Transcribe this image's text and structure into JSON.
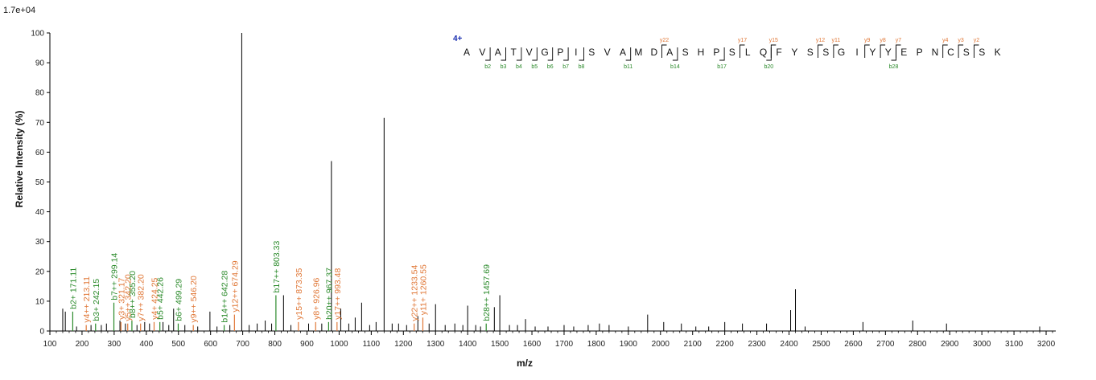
{
  "chart_data": {
    "type": "bar",
    "scale_label": "1.7e+04",
    "xlabel": "m/z",
    "ylabel": "Relative   Intensity (%)",
    "xlim": [
      100,
      3230
    ],
    "ylim": [
      0,
      100
    ],
    "xticks": [
      100,
      200,
      300,
      400,
      500,
      600,
      700,
      800,
      900,
      1000,
      1100,
      1200,
      1300,
      1400,
      1500,
      1600,
      1700,
      1800,
      1900,
      2000,
      2100,
      2200,
      2300,
      2400,
      2500,
      2600,
      2700,
      2800,
      2900,
      3000,
      3100,
      3200
    ],
    "yticks": [
      0,
      10,
      20,
      30,
      40,
      50,
      60,
      70,
      80,
      90,
      100
    ],
    "colors": {
      "b_ion": "#2a8a2a",
      "y_ion": "#e07838",
      "unlabeled": "#000000",
      "charge": "#1a2fb0"
    },
    "labeled_peaks": [
      {
        "mz": 171.11,
        "intensity": 6.5,
        "label": "b2+ 171.11",
        "ion": "b"
      },
      {
        "mz": 213.11,
        "intensity": 2.0,
        "label": "y4++ 213.11",
        "ion": "y"
      },
      {
        "mz": 242.15,
        "intensity": 2.5,
        "label": "b3+ 242.15",
        "ion": "b"
      },
      {
        "mz": 299.14,
        "intensity": 9.5,
        "label": "b7++ 299.14",
        "ion": "b"
      },
      {
        "mz": 321.17,
        "intensity": 3.0,
        "label": "y3+ 321.17",
        "ion": "y"
      },
      {
        "mz": 342.2,
        "intensity": 2.5,
        "label": "y5++ 342.20",
        "ion": "y"
      },
      {
        "mz": 355.2,
        "intensity": 3.5,
        "label": "b8++ 355.20",
        "ion": "b"
      },
      {
        "mz": 382.2,
        "intensity": 2.5,
        "label": "y7++ 382.20",
        "ion": "y"
      },
      {
        "mz": 424.25,
        "intensity": 3.0,
        "label": "y4+ 424.25",
        "ion": "y"
      },
      {
        "mz": 442.26,
        "intensity": 3.0,
        "label": "b5+ 442.26",
        "ion": "b"
      },
      {
        "mz": 499.29,
        "intensity": 2.5,
        "label": "b6+ 499.29",
        "ion": "b"
      },
      {
        "mz": 546.2,
        "intensity": 2.0,
        "label": "y9++ 546.20",
        "ion": "y"
      },
      {
        "mz": 642.28,
        "intensity": 2.0,
        "label": "b14++ 642.28",
        "ion": "b"
      },
      {
        "mz": 674.29,
        "intensity": 5.5,
        "label": "y12++ 674.29",
        "ion": "y"
      },
      {
        "mz": 803.33,
        "intensity": 12.0,
        "label": "b17++ 803.33",
        "ion": "b"
      },
      {
        "mz": 873.35,
        "intensity": 3.0,
        "label": "y15++ 873.35",
        "ion": "y"
      },
      {
        "mz": 926.96,
        "intensity": 3.0,
        "label": "y8+ 926.96",
        "ion": "y"
      },
      {
        "mz": 967.37,
        "intensity": 3.0,
        "label": "b20++ 967.37",
        "ion": "b"
      },
      {
        "mz": 993.48,
        "intensity": 3.0,
        "label": "y17++ 993.48",
        "ion": "y"
      },
      {
        "mz": 1233.54,
        "intensity": 2.5,
        "label": "y22++ 1233.54",
        "ion": "y"
      },
      {
        "mz": 1260.55,
        "intensity": 4.5,
        "label": "y11+ 1260.55",
        "ion": "y"
      },
      {
        "mz": 1457.69,
        "intensity": 2.5,
        "label": "b28++ 1457.69",
        "ion": "b"
      }
    ],
    "peaks": [
      {
        "mz": 140,
        "intensity": 7.5
      },
      {
        "mz": 148,
        "intensity": 6.5
      },
      {
        "mz": 183,
        "intensity": 1.5
      },
      {
        "mz": 228,
        "intensity": 2.0
      },
      {
        "mz": 260,
        "intensity": 2.0
      },
      {
        "mz": 276,
        "intensity": 2.5
      },
      {
        "mz": 318,
        "intensity": 3.5
      },
      {
        "mz": 335,
        "intensity": 2.5
      },
      {
        "mz": 371,
        "intensity": 2.0
      },
      {
        "mz": 395,
        "intensity": 3.0
      },
      {
        "mz": 410,
        "intensity": 2.5
      },
      {
        "mz": 452,
        "intensity": 3.0
      },
      {
        "mz": 470,
        "intensity": 2.0
      },
      {
        "mz": 485,
        "intensity": 7.5
      },
      {
        "mz": 520,
        "intensity": 2.0
      },
      {
        "mz": 560,
        "intensity": 1.5
      },
      {
        "mz": 598,
        "intensity": 6.5
      },
      {
        "mz": 620,
        "intensity": 1.5
      },
      {
        "mz": 660,
        "intensity": 2.0
      },
      {
        "mz": 697,
        "intensity": 100.0
      },
      {
        "mz": 720,
        "intensity": 2.0
      },
      {
        "mz": 745,
        "intensity": 2.5
      },
      {
        "mz": 770,
        "intensity": 3.5
      },
      {
        "mz": 790,
        "intensity": 2.5
      },
      {
        "mz": 827,
        "intensity": 12.0
      },
      {
        "mz": 850,
        "intensity": 2.0
      },
      {
        "mz": 905,
        "intensity": 2.5
      },
      {
        "mz": 946,
        "intensity": 2.5
      },
      {
        "mz": 976,
        "intensity": 57.0
      },
      {
        "mz": 1005,
        "intensity": 7.5
      },
      {
        "mz": 1030,
        "intensity": 2.5
      },
      {
        "mz": 1050,
        "intensity": 4.5
      },
      {
        "mz": 1070,
        "intensity": 9.5
      },
      {
        "mz": 1095,
        "intensity": 2.0
      },
      {
        "mz": 1115,
        "intensity": 3.0
      },
      {
        "mz": 1140,
        "intensity": 71.5
      },
      {
        "mz": 1165,
        "intensity": 2.5
      },
      {
        "mz": 1185,
        "intensity": 2.5
      },
      {
        "mz": 1210,
        "intensity": 2.0
      },
      {
        "mz": 1245,
        "intensity": 5.0
      },
      {
        "mz": 1280,
        "intensity": 2.5
      },
      {
        "mz": 1300,
        "intensity": 9.0
      },
      {
        "mz": 1330,
        "intensity": 2.0
      },
      {
        "mz": 1360,
        "intensity": 2.5
      },
      {
        "mz": 1385,
        "intensity": 2.0
      },
      {
        "mz": 1400,
        "intensity": 8.5
      },
      {
        "mz": 1425,
        "intensity": 2.0
      },
      {
        "mz": 1440,
        "intensity": 1.5
      },
      {
        "mz": 1483,
        "intensity": 8.0
      },
      {
        "mz": 1500,
        "intensity": 12.0
      },
      {
        "mz": 1530,
        "intensity": 2.0
      },
      {
        "mz": 1555,
        "intensity": 2.0
      },
      {
        "mz": 1580,
        "intensity": 4.0
      },
      {
        "mz": 1610,
        "intensity": 1.5
      },
      {
        "mz": 1650,
        "intensity": 1.5
      },
      {
        "mz": 1700,
        "intensity": 2.0
      },
      {
        "mz": 1730,
        "intensity": 1.5
      },
      {
        "mz": 1775,
        "intensity": 2.0
      },
      {
        "mz": 1810,
        "intensity": 2.5
      },
      {
        "mz": 1840,
        "intensity": 2.0
      },
      {
        "mz": 1900,
        "intensity": 1.5
      },
      {
        "mz": 1960,
        "intensity": 5.5
      },
      {
        "mz": 2010,
        "intensity": 3.0
      },
      {
        "mz": 2065,
        "intensity": 2.5
      },
      {
        "mz": 2110,
        "intensity": 1.5
      },
      {
        "mz": 2150,
        "intensity": 1.5
      },
      {
        "mz": 2200,
        "intensity": 3.0
      },
      {
        "mz": 2255,
        "intensity": 2.5
      },
      {
        "mz": 2330,
        "intensity": 2.5
      },
      {
        "mz": 2405,
        "intensity": 7.0
      },
      {
        "mz": 2420,
        "intensity": 14.0
      },
      {
        "mz": 2450,
        "intensity": 1.5
      },
      {
        "mz": 2630,
        "intensity": 3.0
      },
      {
        "mz": 2785,
        "intensity": 3.5
      },
      {
        "mz": 2890,
        "intensity": 2.5
      },
      {
        "mz": 3180,
        "intensity": 1.5
      }
    ],
    "sequence": {
      "charge": "4+",
      "residues": [
        "A",
        "V",
        "A",
        "T",
        "V",
        "G",
        "P",
        "I",
        "S",
        "V",
        "A",
        "M",
        "D",
        "A",
        "S",
        "H",
        "P",
        "S",
        "L",
        "Q",
        "F",
        "Y",
        "S",
        "S",
        "G",
        "I",
        "Y",
        "Y",
        "E",
        "P",
        "N",
        "C",
        "S",
        "S",
        "K"
      ],
      "b_ions": [
        {
          "label": "b2",
          "after": 2
        },
        {
          "label": "b3",
          "after": 3
        },
        {
          "label": "b4",
          "after": 4
        },
        {
          "label": "b5",
          "after": 5
        },
        {
          "label": "b6",
          "after": 6
        },
        {
          "label": "b7",
          "after": 7
        },
        {
          "label": "b8",
          "after": 8
        },
        {
          "label": "b11",
          "after": 11
        },
        {
          "label": "b14",
          "after": 14
        },
        {
          "label": "b17",
          "after": 17
        },
        {
          "label": "b20",
          "after": 20
        },
        {
          "label": "b28",
          "after": 28
        }
      ],
      "y_ions": [
        {
          "label": "y22",
          "after": 13
        },
        {
          "label": "y17",
          "after": 18
        },
        {
          "label": "y15",
          "after": 20
        },
        {
          "label": "y12",
          "after": 23
        },
        {
          "label": "y11",
          "after": 24
        },
        {
          "label": "y9",
          "after": 26
        },
        {
          "label": "y8",
          "after": 27
        },
        {
          "label": "y7",
          "after": 28
        },
        {
          "label": "y4",
          "after": 31
        },
        {
          "label": "y3",
          "after": 32
        },
        {
          "label": "y2",
          "after": 33
        }
      ]
    }
  }
}
